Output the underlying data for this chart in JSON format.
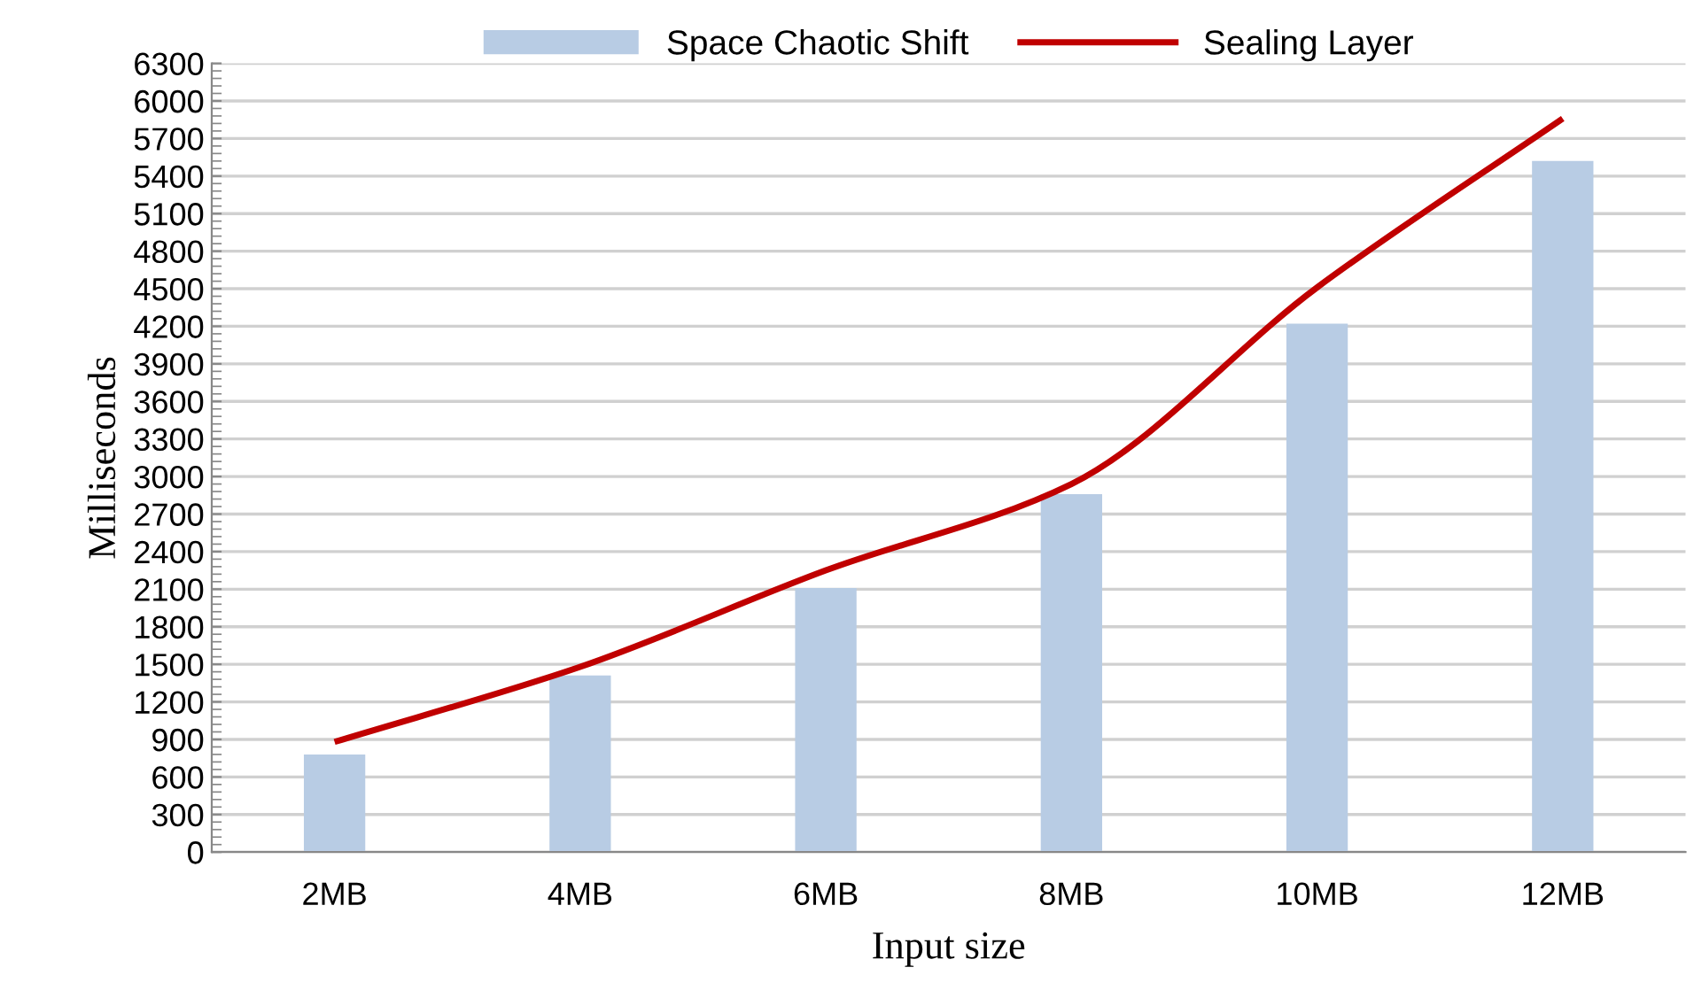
{
  "chart_data": {
    "type": "bar",
    "xlabel": "Input size",
    "ylabel": "Milliseconds",
    "categories": [
      "2MB",
      "4MB",
      "6MB",
      "8MB",
      "10MB",
      "12MB"
    ],
    "series": [
      {
        "name": "Space Chaotic Shift",
        "color": "#b8cce4",
        "values": [
          780,
          1410,
          2110,
          2860,
          4220,
          5520
        ]
      },
      {
        "name": "Sealing Layer",
        "type": "line",
        "color": "#c00000",
        "values": [
          880,
          1480,
          2250,
          2940,
          4510,
          5860
        ]
      }
    ],
    "ylim": [
      0,
      6300
    ],
    "yticks": [
      0,
      300,
      600,
      900,
      1200,
      1500,
      1800,
      2100,
      2400,
      2700,
      3000,
      3300,
      3600,
      3900,
      4200,
      4500,
      4800,
      5100,
      5400,
      5700,
      6000,
      6300
    ],
    "grid": "y",
    "legend": "top"
  }
}
